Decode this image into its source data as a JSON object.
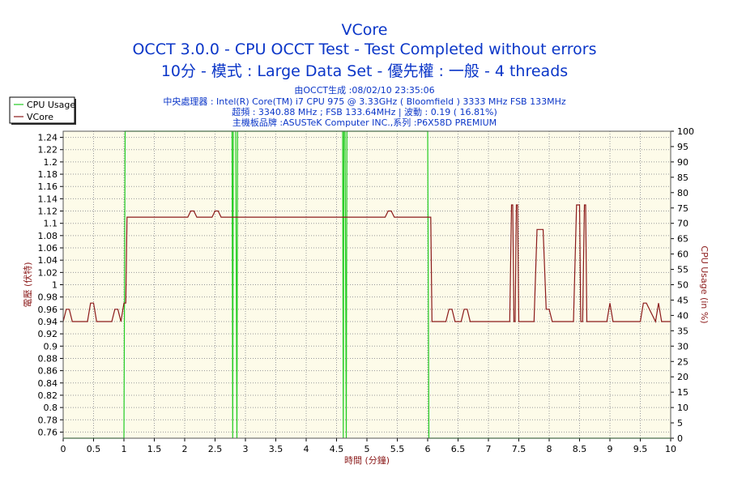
{
  "header": {
    "title": "VCore",
    "subtitle1": "OCCT 3.0.0 - CPU OCCT Test - Test Completed without errors",
    "subtitle2": "10分 - 模式 : Large Data Set - 優先權 : 一般 - 4 threads",
    "info_lines": [
      "由OCCT生成 :08/02/10 23:35:06",
      "中央處理器 : Intel(R) Core(TM) i7 CPU 975 @ 3.33GHz ( Bloomfield ) 3333 MHz FSB 133MHz",
      "超頻 : 3340.88 MHz ; FSB 133.64MHz | 波動 : 0.19 ( 16.81%)",
      "主機板品牌 :ASUSTeK Computer INC.,系列 :P6X58D PREMIUM"
    ]
  },
  "chart_data": {
    "type": "line",
    "xlabel": "時間 (分鐘)",
    "ylabel_left": "電壓 (伏特)",
    "ylabel_right": "CPU Usage (in %)",
    "xlim": [
      0,
      10
    ],
    "ylim_left": [
      0.75,
      1.25
    ],
    "ylim_right": [
      0,
      100
    ],
    "x_ticks": [
      "0",
      "0.5",
      "1",
      "1.5",
      "2",
      "2.5",
      "3",
      "3.5",
      "4",
      "4.5",
      "5",
      "5.5",
      "6",
      "6.5",
      "7",
      "7.5",
      "8",
      "8.5",
      "9",
      "9.5",
      "10"
    ],
    "y_left_ticks": [
      "0.76",
      "0.78",
      "0.8",
      "0.82",
      "0.84",
      "0.86",
      "0.88",
      "0.9",
      "0.92",
      "0.94",
      "0.96",
      "0.98",
      "1",
      "1.02",
      "1.04",
      "1.06",
      "1.08",
      "1.1",
      "1.12",
      "1.14",
      "1.16",
      "1.18",
      "1.2",
      "1.22",
      "1.24"
    ],
    "y_right_ticks": [
      "0",
      "5",
      "10",
      "15",
      "20",
      "25",
      "30",
      "35",
      "40",
      "45",
      "50",
      "55",
      "60",
      "65",
      "70",
      "75",
      "80",
      "85",
      "90",
      "95",
      "100"
    ],
    "grid": true,
    "legend_position": "top-left",
    "colors": {
      "cpu_usage": "#22cc22",
      "vcore": "#8b1a1a",
      "plot_bg": "#fdfbe9",
      "grid": "#999999",
      "title": "#0b36c8"
    },
    "series": [
      {
        "name": "CPU Usage",
        "axis": "right",
        "x": [
          0,
          1.0,
          1.02,
          1.04,
          1.06,
          2.78,
          2.79,
          2.8,
          2.82,
          2.84,
          2.86,
          2.87,
          2.88,
          4.6,
          4.61,
          4.62,
          4.64,
          4.66,
          4.67,
          4.68,
          6.0,
          6.02,
          6.04,
          6.06,
          10
        ],
        "values": [
          0,
          0,
          100,
          100,
          100,
          100,
          0,
          100,
          100,
          100,
          0,
          100,
          100,
          100,
          0,
          100,
          100,
          0,
          100,
          100,
          100,
          0,
          0,
          0,
          0
        ]
      },
      {
        "name": "VCore",
        "axis": "left",
        "x": [
          0,
          0.05,
          0.1,
          0.15,
          0.2,
          0.4,
          0.45,
          0.5,
          0.55,
          0.8,
          0.85,
          0.9,
          0.95,
          1.0,
          1.03,
          1.05,
          1.08,
          2.0,
          2.05,
          2.1,
          2.15,
          2.2,
          2.45,
          2.5,
          2.55,
          2.6,
          5.3,
          5.35,
          5.4,
          5.45,
          5.5,
          6.05,
          6.07,
          6.1,
          6.3,
          6.35,
          6.4,
          6.45,
          6.55,
          6.6,
          6.65,
          6.7,
          6.75,
          7.35,
          7.38,
          7.4,
          7.42,
          7.44,
          7.46,
          7.48,
          7.5,
          7.75,
          7.8,
          7.85,
          7.9,
          7.95,
          8.0,
          8.05,
          8.4,
          8.45,
          8.5,
          8.52,
          8.55,
          8.58,
          8.6,
          8.62,
          8.65,
          8.7,
          8.75,
          8.95,
          9.0,
          9.05,
          9.5,
          9.55,
          9.6,
          9.75,
          9.8,
          9.85,
          10.0
        ],
        "values": [
          0.94,
          0.96,
          0.96,
          0.94,
          0.94,
          0.94,
          0.97,
          0.97,
          0.94,
          0.94,
          0.96,
          0.96,
          0.94,
          0.97,
          0.97,
          1.11,
          1.11,
          1.11,
          1.11,
          1.12,
          1.12,
          1.11,
          1.11,
          1.12,
          1.12,
          1.11,
          1.11,
          1.12,
          1.12,
          1.11,
          1.11,
          1.11,
          0.94,
          0.94,
          0.94,
          0.96,
          0.96,
          0.94,
          0.94,
          0.96,
          0.96,
          0.94,
          0.94,
          0.94,
          1.13,
          1.13,
          0.94,
          0.94,
          1.13,
          1.13,
          0.94,
          0.94,
          1.09,
          1.09,
          1.09,
          0.96,
          0.96,
          0.94,
          0.94,
          1.13,
          1.13,
          0.94,
          0.94,
          1.13,
          1.13,
          0.94,
          0.94,
          0.94,
          0.94,
          0.94,
          0.97,
          0.94,
          0.94,
          0.97,
          0.97,
          0.94,
          0.97,
          0.94,
          0.94
        ]
      }
    ]
  }
}
